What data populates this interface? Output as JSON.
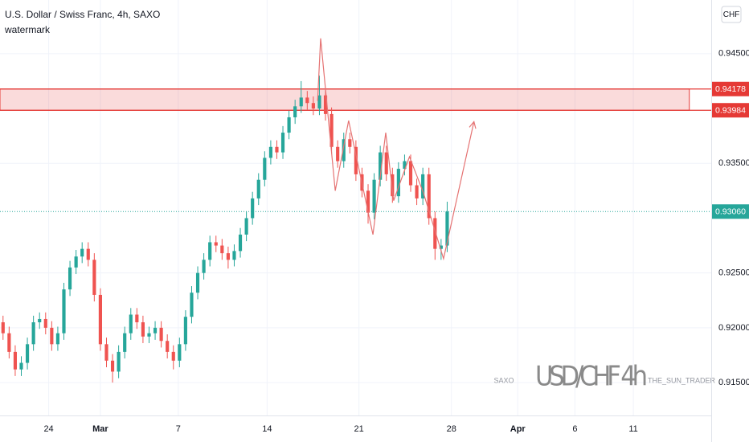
{
  "chart_data": {
    "type": "candlestick",
    "title": "U.S. Dollar / Swiss Franc, 4h, SAXO",
    "subtitle": "watermark",
    "currency": "CHF",
    "up_color": "#26a69a",
    "down_color": "#ef5350",
    "grid": true,
    "xlim": [
      -0.5,
      116.4
    ],
    "ylim": [
      0.912,
      0.9499
    ],
    "xticks": [
      {
        "value": 7.5,
        "label": "24"
      },
      {
        "value": 16,
        "label": "Mar"
      },
      {
        "value": 28.8,
        "label": "7"
      },
      {
        "value": 43.4,
        "label": "14"
      },
      {
        "value": 58.5,
        "label": "21"
      },
      {
        "value": 73.7,
        "label": "28"
      },
      {
        "value": 84.6,
        "label": "Apr"
      },
      {
        "value": 94,
        "label": "6"
      },
      {
        "value": 103.6,
        "label": "11"
      }
    ],
    "yticks": [
      {
        "value": 0.945,
        "label": "0.94500"
      },
      {
        "value": 0.935,
        "label": "0.93500"
      },
      {
        "value": 0.925,
        "label": "0.92500"
      },
      {
        "value": 0.92,
        "label": "0.92000"
      },
      {
        "value": 0.915,
        "label": "0.91500"
      }
    ],
    "open": [
      0.9205,
      0.9195,
      0.9178,
      0.9162,
      0.9168,
      0.9185,
      0.9205,
      0.9208,
      0.92,
      0.9185,
      0.9195,
      0.9235,
      0.9255,
      0.9265,
      0.9272,
      0.9262,
      0.923,
      0.9185,
      0.917,
      0.916,
      0.9178,
      0.9195,
      0.9212,
      0.9205,
      0.9192,
      0.9195,
      0.92,
      0.9188,
      0.9178,
      0.917,
      0.9185,
      0.921,
      0.9232,
      0.925,
      0.9262,
      0.9278,
      0.9275,
      0.9268,
      0.9262,
      0.927,
      0.9285,
      0.93,
      0.9318,
      0.9335,
      0.9355,
      0.9365,
      0.936,
      0.9378,
      0.9392,
      0.9402,
      0.941,
      0.9405,
      0.94,
      0.9412,
      0.9395,
      0.9365,
      0.9352,
      0.9372,
      0.9365,
      0.934,
      0.9325,
      0.9305,
      0.9335,
      0.936,
      0.934,
      0.932,
      0.9345,
      0.9352,
      0.933,
      0.9318,
      0.934,
      0.93,
      0.9272,
      0.9275
    ],
    "high": [
      0.9211,
      0.9201,
      0.9184,
      0.9174,
      0.9191,
      0.9211,
      0.9214,
      0.9214,
      0.9206,
      0.9201,
      0.9241,
      0.9261,
      0.9271,
      0.9278,
      0.9278,
      0.9268,
      0.9236,
      0.9191,
      0.9176,
      0.9184,
      0.9201,
      0.9218,
      0.9218,
      0.9211,
      0.9201,
      0.9206,
      0.9206,
      0.9194,
      0.9184,
      0.9191,
      0.9216,
      0.9238,
      0.9256,
      0.9268,
      0.9284,
      0.9284,
      0.9281,
      0.9274,
      0.9276,
      0.9291,
      0.9306,
      0.9324,
      0.9341,
      0.9361,
      0.9371,
      0.9371,
      0.9384,
      0.9398,
      0.9408,
      0.9425,
      0.9416,
      0.9411,
      0.943,
      0.9418,
      0.9401,
      0.9371,
      0.9378,
      0.9378,
      0.9371,
      0.9346,
      0.9331,
      0.9341,
      0.9366,
      0.9366,
      0.9346,
      0.9351,
      0.9358,
      0.9358,
      0.9336,
      0.9346,
      0.9346,
      0.9306,
      0.9281,
      0.9315
    ],
    "low": [
      0.9189,
      0.9172,
      0.9156,
      0.9156,
      0.9162,
      0.9179,
      0.9199,
      0.9194,
      0.9179,
      0.9179,
      0.9189,
      0.9229,
      0.9249,
      0.9259,
      0.9256,
      0.9224,
      0.9179,
      0.9164,
      0.915,
      0.9154,
      0.9172,
      0.9189,
      0.9199,
      0.9186,
      0.9186,
      0.9189,
      0.9182,
      0.9172,
      0.9162,
      0.9164,
      0.9179,
      0.9204,
      0.9226,
      0.9244,
      0.9256,
      0.9269,
      0.9262,
      0.9254,
      0.9256,
      0.9264,
      0.9279,
      0.9294,
      0.9312,
      0.9329,
      0.9349,
      0.9354,
      0.9354,
      0.9372,
      0.9386,
      0.9396,
      0.9399,
      0.9394,
      0.9394,
      0.9389,
      0.9359,
      0.9346,
      0.9346,
      0.9359,
      0.9334,
      0.9319,
      0.9295,
      0.9299,
      0.9329,
      0.9334,
      0.9314,
      0.9314,
      0.9339,
      0.9324,
      0.9312,
      0.9312,
      0.9294,
      0.9262,
      0.9262,
      0.9269
    ],
    "close": [
      0.9195,
      0.9178,
      0.9162,
      0.9168,
      0.9185,
      0.9205,
      0.9208,
      0.92,
      0.9185,
      0.9195,
      0.9235,
      0.9255,
      0.9265,
      0.9272,
      0.9262,
      0.923,
      0.9185,
      0.917,
      0.916,
      0.9178,
      0.9195,
      0.9212,
      0.9205,
      0.9192,
      0.9195,
      0.92,
      0.9188,
      0.9178,
      0.917,
      0.9185,
      0.921,
      0.9232,
      0.925,
      0.9262,
      0.9278,
      0.9275,
      0.9268,
      0.9262,
      0.927,
      0.9285,
      0.93,
      0.9318,
      0.9335,
      0.9355,
      0.9365,
      0.936,
      0.9378,
      0.9392,
      0.9402,
      0.941,
      0.9405,
      0.94,
      0.9412,
      0.9395,
      0.9365,
      0.9352,
      0.9372,
      0.9365,
      0.934,
      0.9325,
      0.9305,
      0.9335,
      0.936,
      0.934,
      0.932,
      0.9345,
      0.9352,
      0.933,
      0.9318,
      0.934,
      0.93,
      0.9272,
      0.9275,
      0.9306
    ],
    "last_price": {
      "value": 0.9306,
      "label": "0.93060",
      "color": "#26a69a"
    },
    "zone": {
      "top": 0.94178,
      "top_label": "0.94178",
      "bottom": 0.93984,
      "bottom_label": "0.93984",
      "x_end": 112.8,
      "color": "#e53935"
    },
    "drawing": {
      "color": "#e57373",
      "x": [
        51.7,
        52.2,
        54.6,
        56.8,
        60.8,
        62.9,
        64.2,
        66.8,
        69.1,
        72.4,
        77.4
      ],
      "y": [
        0.9407,
        0.9464,
        0.9325,
        0.9389,
        0.9285,
        0.9378,
        0.9316,
        0.9356,
        0.9323,
        0.9263,
        0.9388
      ]
    },
    "watermark": {
      "left": "SAXO",
      "main": "USD/CHF 4h",
      "right": "THE_SUN_TRADER"
    }
  }
}
